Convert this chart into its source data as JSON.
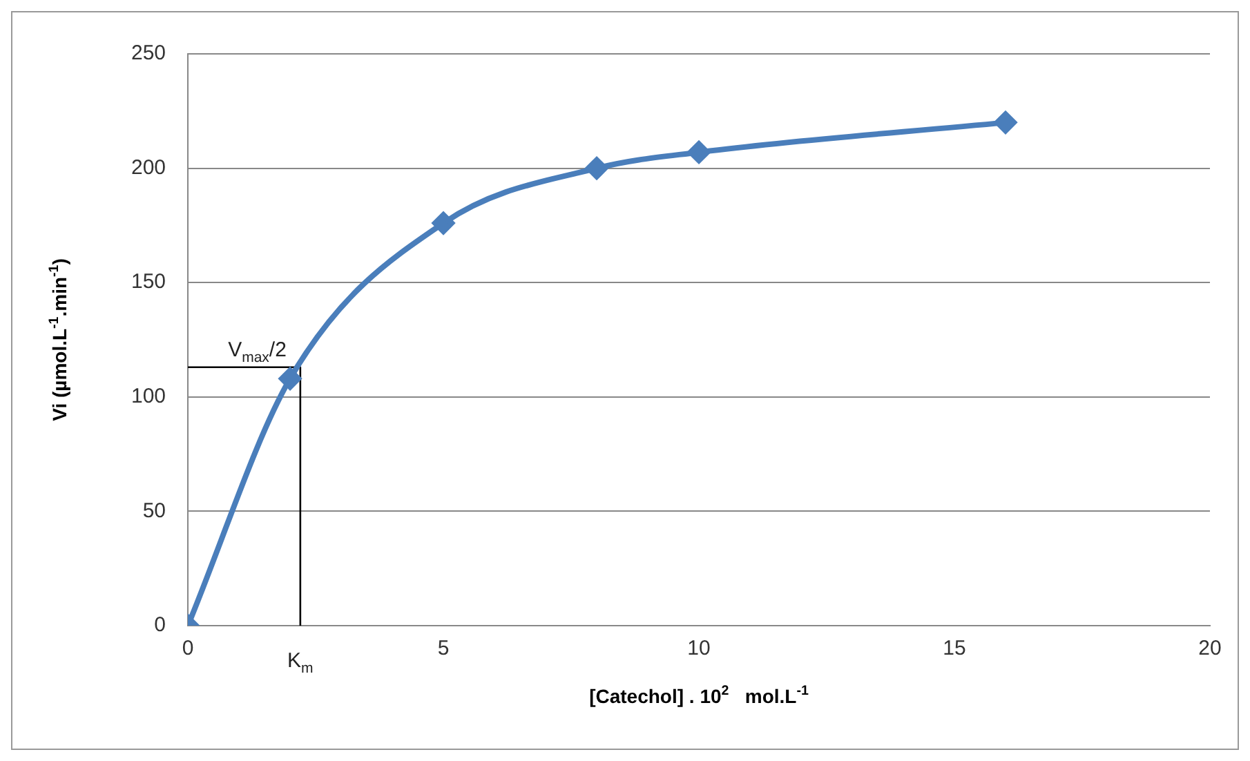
{
  "chart_data": {
    "type": "line",
    "xlabel": "[Catechol] . 10$^{2}$   mol.L$^{-1}$",
    "ylabel": "Vi (µmol.L$^{-1}$.min$^{-1}$)",
    "xlim": [
      0,
      20
    ],
    "xticks": [
      0,
      5,
      10,
      15,
      20
    ],
    "ylim": [
      0,
      250
    ],
    "yticks": [
      0,
      50,
      100,
      150,
      200,
      250
    ],
    "grid": "y",
    "legend": false,
    "series": [
      {
        "color": "#4a7ebb",
        "x": [
          0,
          2,
          5,
          8,
          10,
          16
        ],
        "values": [
          0,
          108,
          176,
          200,
          207,
          220
        ],
        "marker": "diamond"
      },
      {
        "color": "#000000",
        "x": [
          0,
          2.2,
          2.2
        ],
        "values": [
          113,
          113,
          0
        ],
        "marker": "none"
      }
    ],
    "annotations": [
      {
        "text": "V$_{max}$/2",
        "x": 2.2,
        "y": 113
      },
      {
        "text": "K$_{m}$",
        "x": 2.2,
        "y": 0
      }
    ]
  }
}
